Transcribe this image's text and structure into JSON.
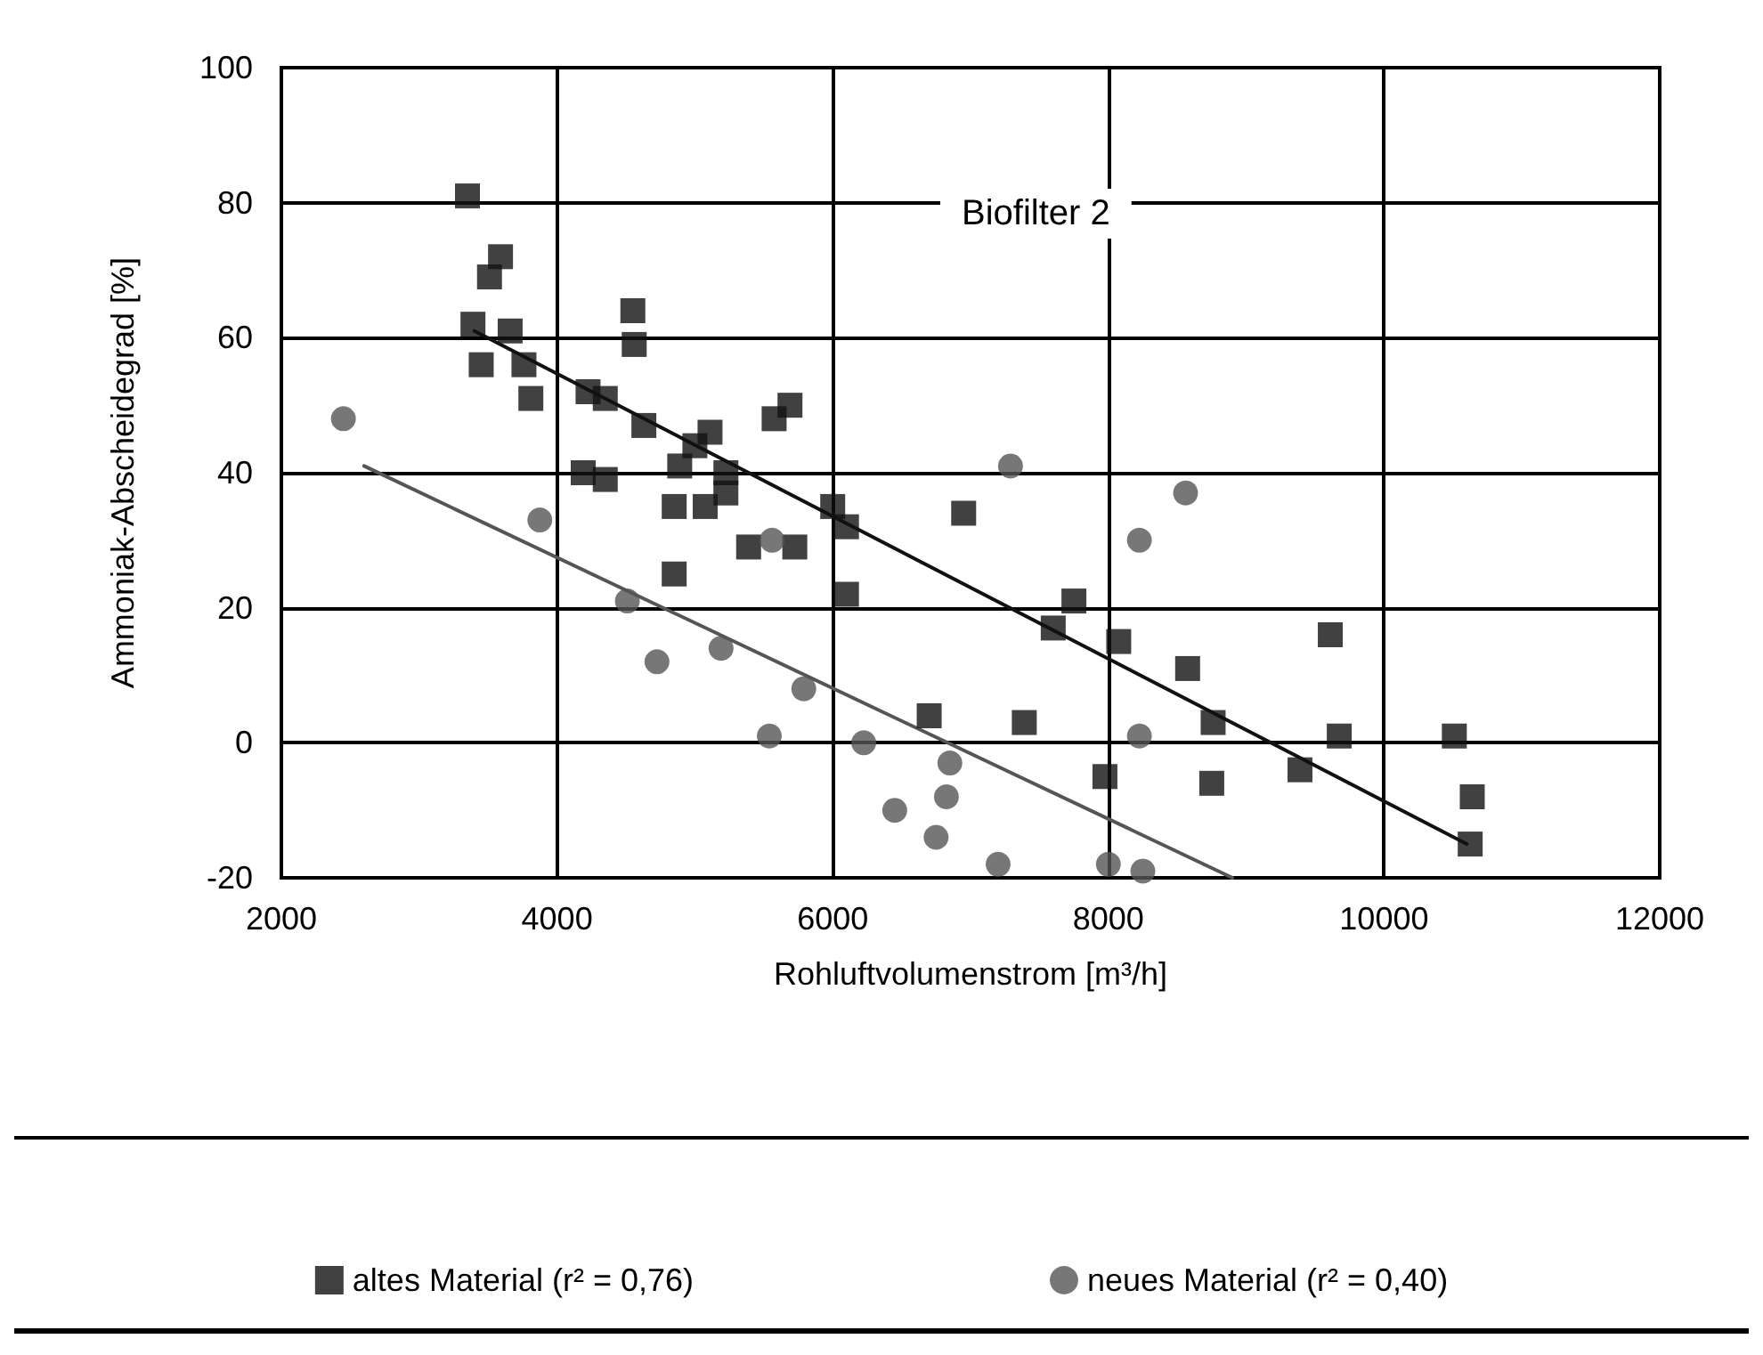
{
  "chart_data": {
    "type": "scatter",
    "xlabel": "Rohluftvolumenstrom [m³/h]",
    "ylabel": "Ammoniak-Abscheidegrad [%]",
    "annotations": [
      "Biofilter 2"
    ],
    "xlim": [
      2000,
      12000
    ],
    "ylim": [
      -20,
      100
    ],
    "xticks": [
      2000,
      4000,
      6000,
      8000,
      10000,
      12000
    ],
    "yticks": [
      -20,
      0,
      20,
      40,
      60,
      80,
      100
    ],
    "grid": true,
    "legend": "bottom",
    "series": [
      {
        "name": "altes Material (r² = 0,76)",
        "color": "#111111",
        "marker": "square",
        "x": [
          3350,
          3590,
          3510,
          3390,
          3660,
          3450,
          3760,
          3810,
          4550,
          4560,
          4225,
          4350,
          4630,
          5110,
          5000,
          5690,
          5575,
          4190,
          4350,
          4890,
          5225,
          4850,
          5075,
          5225,
          6000,
          6100,
          6950,
          5390,
          5725,
          4850,
          6100,
          6700,
          7750,
          8075,
          8575,
          8760,
          7390,
          9610,
          9675,
          10510,
          7975,
          8750,
          9390,
          10640,
          10625,
          7600
        ],
        "values": [
          81,
          72,
          69,
          62,
          61,
          56,
          56,
          51,
          64,
          59,
          52,
          51,
          47,
          46,
          44,
          50,
          48,
          40,
          39,
          41,
          40,
          35,
          35,
          37,
          35,
          32,
          34,
          29,
          29,
          25,
          22,
          4,
          21,
          15,
          11,
          3,
          3,
          16,
          1,
          1,
          -5,
          -6,
          -4,
          -8,
          -15,
          17
        ]
      },
      {
        "name": "neues Material (r² = 0,40)",
        "color": "#555555",
        "marker": "circle",
        "x": [
          2450,
          3875,
          4725,
          5540,
          6225,
          5790,
          5190,
          4510,
          6850,
          6825,
          6450,
          6750,
          7200,
          5560,
          7290,
          8560,
          8225,
          8225,
          8000,
          8250
        ],
        "values": [
          48,
          33,
          12,
          1,
          0,
          8,
          14,
          21,
          -3,
          -8,
          -10,
          -14,
          -18,
          30,
          41,
          37,
          30,
          1,
          -18,
          -19
        ]
      },
      {
        "type": "line",
        "color": "#111111",
        "marker": "none",
        "line_style": "solid",
        "x": [
          3400,
          10600
        ],
        "values": [
          61,
          -15
        ]
      },
      {
        "type": "line",
        "color": "#555555",
        "marker": "none",
        "line_style": "solid",
        "x": [
          2600,
          8900
        ],
        "values": [
          41,
          -20
        ]
      }
    ]
  }
}
